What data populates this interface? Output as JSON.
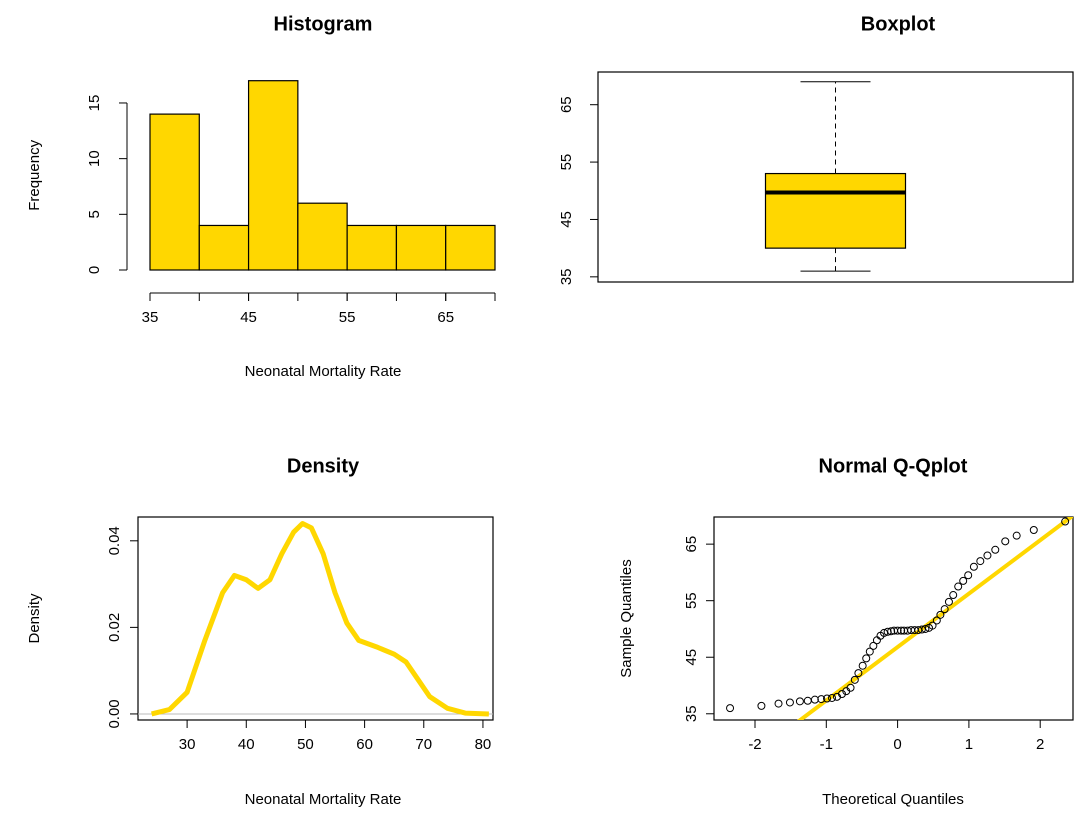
{
  "chart_data": [
    {
      "type": "histogram",
      "title": "Histogram",
      "x_label": "Neonatal Mortality Rate",
      "y_label": "Frequency",
      "bins": [
        35,
        40,
        45,
        50,
        55,
        60,
        65,
        70
      ],
      "counts": [
        14,
        4,
        17,
        6,
        4,
        4,
        4
      ],
      "color": "#ffd700",
      "xlim": [
        35,
        70
      ],
      "xticks": [
        35,
        45,
        55,
        65
      ],
      "ylim": [
        0,
        17
      ],
      "yticks": [
        0,
        5,
        10,
        15
      ]
    },
    {
      "type": "box",
      "title": "Boxplot",
      "stats": {
        "min": 36,
        "q1": 40,
        "median": 49.7,
        "q3": 53,
        "max": 69
      },
      "color": "#ffd700",
      "ylim": [
        34.1,
        70.7
      ],
      "yticks": [
        35,
        45,
        55,
        65
      ]
    },
    {
      "type": "line",
      "title": "Density",
      "x_label": "Neonatal Mortality Rate",
      "y_label": "Density",
      "x": [
        24,
        27,
        30,
        33,
        36,
        38,
        40,
        42,
        44,
        46,
        48,
        49.5,
        51,
        53,
        55,
        57,
        59,
        62,
        65,
        67,
        69,
        71,
        74,
        77,
        81
      ],
      "values": [
        0,
        0.001,
        0.005,
        0.017,
        0.028,
        0.032,
        0.031,
        0.029,
        0.031,
        0.037,
        0.042,
        0.044,
        0.043,
        0.037,
        0.028,
        0.021,
        0.017,
        0.0155,
        0.0138,
        0.012,
        0.008,
        0.004,
        0.0013,
        0.0002,
        0
      ],
      "color": "#ffd700",
      "xlim": [
        21.7,
        81.7
      ],
      "xticks": [
        30,
        40,
        50,
        60,
        70,
        80
      ],
      "ylim": [
        -0.0014,
        0.0455
      ],
      "yticks": [
        {
          "value": 0,
          "label": "0.00"
        },
        0.02,
        0.04
      ]
    },
    {
      "type": "scatter",
      "title": "Normal Q-Qplot",
      "x_label": "Theoretical Quantiles",
      "y_label": "Sample Quantiles",
      "x": [
        -2.35,
        -1.91,
        -1.67,
        -1.51,
        -1.37,
        -1.26,
        -1.16,
        -1.07,
        -0.99,
        -0.92,
        -0.85,
        -0.78,
        -0.72,
        -0.66,
        -0.6,
        -0.55,
        -0.49,
        -0.44,
        -0.39,
        -0.34,
        -0.29,
        -0.24,
        -0.19,
        -0.14,
        -0.09,
        -0.05,
        0,
        0.05,
        0.09,
        0.14,
        0.19,
        0.24,
        0.29,
        0.34,
        0.39,
        0.44,
        0.49,
        0.55,
        0.6,
        0.66,
        0.72,
        0.78,
        0.85,
        0.92,
        0.99,
        1.07,
        1.16,
        1.26,
        1.37,
        1.51,
        1.67,
        1.91,
        2.35
      ],
      "values": [
        36.0,
        36.4,
        36.8,
        37.0,
        37.2,
        37.3,
        37.5,
        37.6,
        37.7,
        37.8,
        38.0,
        38.5,
        39.0,
        39.6,
        41.0,
        42.2,
        43.5,
        44.8,
        46.0,
        47.0,
        48.0,
        48.8,
        49.3,
        49.5,
        49.6,
        49.7,
        49.7,
        49.7,
        49.7,
        49.7,
        49.8,
        49.8,
        49.8,
        49.9,
        50.0,
        50.2,
        50.6,
        51.5,
        52.5,
        53.5,
        54.8,
        56.0,
        57.5,
        58.5,
        59.5,
        61.0,
        62.0,
        63.0,
        64.0,
        65.5,
        66.5,
        67.5,
        69.0
      ],
      "color": "#000000",
      "reference_line": {
        "intercept": 46.8,
        "slope": 9.45,
        "color": "#ffd700"
      },
      "xlim": [
        -2.575,
        2.46
      ],
      "xticks": [
        -2,
        -1,
        0,
        1,
        2
      ],
      "ylim": [
        33.9,
        69.8
      ],
      "yticks": [
        35,
        45,
        55,
        65
      ]
    }
  ]
}
